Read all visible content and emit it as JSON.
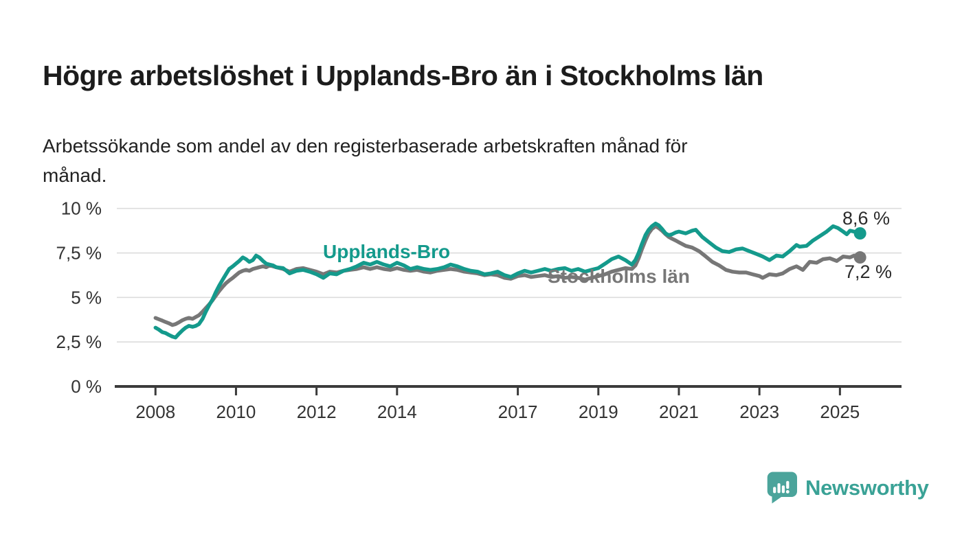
{
  "header": {
    "title": "Högre arbetslöshet i Upplands-Bro än i Stockholms län",
    "subtitle": "Arbetssökande som andel av den registerbaserade arbetskraften månad för\nmånad."
  },
  "chart_data": {
    "type": "line",
    "title": "Högre arbetslöshet i Upplands-Bro än i Stockholms län",
    "subtitle": "Arbetssökande som andel av den registerbaserade arbetskraften månad för månad.",
    "xlabel": "",
    "ylabel": "",
    "xlim": [
      2007.04,
      2026.53
    ],
    "ylim": [
      0,
      10
    ],
    "grid": "horizontal",
    "legend_position": "inline-labels",
    "colors": {
      "accent_teal": "#149a8c",
      "gray": "#777777",
      "gridline": "#dcdcdc",
      "axis": "#3b3b3b",
      "text": "#333333",
      "brand_teal": "#3aa296"
    },
    "x_ticks": [
      {
        "value": 2008,
        "label": "2008"
      },
      {
        "value": 2010,
        "label": "2010"
      },
      {
        "value": 2012,
        "label": "2012"
      },
      {
        "value": 2014,
        "label": "2014"
      },
      {
        "value": 2017,
        "label": "2017"
      },
      {
        "value": 2019,
        "label": "2019"
      },
      {
        "value": 2021,
        "label": "2021"
      },
      {
        "value": 2023,
        "label": "2023"
      },
      {
        "value": 2025,
        "label": "2025"
      }
    ],
    "y_ticks": [
      {
        "value": 0,
        "label": "0 %"
      },
      {
        "value": 2.5,
        "label": "2,5 %"
      },
      {
        "value": 5,
        "label": "5 %"
      },
      {
        "value": 7.5,
        "label": "7,5 %"
      },
      {
        "value": 10,
        "label": "10 %"
      }
    ],
    "series": [
      {
        "name": "Stockholms län",
        "color": "#777777",
        "end_label": "7,2 %",
        "end_value": 7.2,
        "points": [
          [
            2008.0,
            3.85
          ],
          [
            2008.08,
            3.78
          ],
          [
            2008.17,
            3.7
          ],
          [
            2008.25,
            3.62
          ],
          [
            2008.33,
            3.55
          ],
          [
            2008.42,
            3.45
          ],
          [
            2008.5,
            3.5
          ],
          [
            2008.58,
            3.6
          ],
          [
            2008.67,
            3.72
          ],
          [
            2008.75,
            3.8
          ],
          [
            2008.83,
            3.85
          ],
          [
            2008.92,
            3.8
          ],
          [
            2009.0,
            3.9
          ],
          [
            2009.08,
            4.0
          ],
          [
            2009.17,
            4.2
          ],
          [
            2009.25,
            4.4
          ],
          [
            2009.33,
            4.6
          ],
          [
            2009.42,
            4.85
          ],
          [
            2009.5,
            5.1
          ],
          [
            2009.58,
            5.35
          ],
          [
            2009.67,
            5.6
          ],
          [
            2009.75,
            5.8
          ],
          [
            2009.83,
            5.95
          ],
          [
            2009.92,
            6.1
          ],
          [
            2010.0,
            6.25
          ],
          [
            2010.08,
            6.4
          ],
          [
            2010.17,
            6.5
          ],
          [
            2010.25,
            6.55
          ],
          [
            2010.33,
            6.5
          ],
          [
            2010.42,
            6.6
          ],
          [
            2010.5,
            6.65
          ],
          [
            2010.58,
            6.7
          ],
          [
            2010.67,
            6.75
          ],
          [
            2010.75,
            6.7
          ],
          [
            2010.83,
            6.8
          ],
          [
            2010.92,
            6.75
          ],
          [
            2011.0,
            6.7
          ],
          [
            2011.17,
            6.6
          ],
          [
            2011.33,
            6.45
          ],
          [
            2011.5,
            6.6
          ],
          [
            2011.67,
            6.65
          ],
          [
            2011.83,
            6.55
          ],
          [
            2012.0,
            6.45
          ],
          [
            2012.17,
            6.3
          ],
          [
            2012.33,
            6.45
          ],
          [
            2012.5,
            6.4
          ],
          [
            2012.67,
            6.5
          ],
          [
            2012.83,
            6.55
          ],
          [
            2013.0,
            6.6
          ],
          [
            2013.17,
            6.7
          ],
          [
            2013.33,
            6.6
          ],
          [
            2013.5,
            6.7
          ],
          [
            2013.67,
            6.6
          ],
          [
            2013.83,
            6.55
          ],
          [
            2014.0,
            6.65
          ],
          [
            2014.17,
            6.55
          ],
          [
            2014.33,
            6.5
          ],
          [
            2014.5,
            6.55
          ],
          [
            2014.67,
            6.45
          ],
          [
            2014.83,
            6.4
          ],
          [
            2015.0,
            6.5
          ],
          [
            2015.17,
            6.55
          ],
          [
            2015.33,
            6.6
          ],
          [
            2015.5,
            6.55
          ],
          [
            2015.67,
            6.45
          ],
          [
            2015.83,
            6.4
          ],
          [
            2016.0,
            6.35
          ],
          [
            2016.17,
            6.25
          ],
          [
            2016.33,
            6.3
          ],
          [
            2016.5,
            6.25
          ],
          [
            2016.67,
            6.1
          ],
          [
            2016.83,
            6.05
          ],
          [
            2017.0,
            6.2
          ],
          [
            2017.17,
            6.25
          ],
          [
            2017.33,
            6.15
          ],
          [
            2017.5,
            6.2
          ],
          [
            2017.67,
            6.25
          ],
          [
            2017.83,
            6.15
          ],
          [
            2018.0,
            6.2
          ],
          [
            2018.17,
            6.1
          ],
          [
            2018.33,
            6.15
          ],
          [
            2018.5,
            6.1
          ],
          [
            2018.67,
            6.0
          ],
          [
            2018.83,
            6.1
          ],
          [
            2019.0,
            6.2
          ],
          [
            2019.17,
            6.3
          ],
          [
            2019.33,
            6.45
          ],
          [
            2019.5,
            6.55
          ],
          [
            2019.67,
            6.65
          ],
          [
            2019.83,
            6.6
          ],
          [
            2019.92,
            6.8
          ],
          [
            2020.0,
            7.2
          ],
          [
            2020.08,
            7.7
          ],
          [
            2020.17,
            8.2
          ],
          [
            2020.25,
            8.6
          ],
          [
            2020.33,
            8.85
          ],
          [
            2020.42,
            9.0
          ],
          [
            2020.5,
            8.9
          ],
          [
            2020.58,
            8.75
          ],
          [
            2020.67,
            8.55
          ],
          [
            2020.75,
            8.4
          ],
          [
            2020.83,
            8.3
          ],
          [
            2020.92,
            8.2
          ],
          [
            2021.0,
            8.1
          ],
          [
            2021.17,
            7.9
          ],
          [
            2021.33,
            7.8
          ],
          [
            2021.5,
            7.6
          ],
          [
            2021.67,
            7.3
          ],
          [
            2021.83,
            7.0
          ],
          [
            2022.0,
            6.8
          ],
          [
            2022.17,
            6.55
          ],
          [
            2022.33,
            6.45
          ],
          [
            2022.5,
            6.4
          ],
          [
            2022.67,
            6.4
          ],
          [
            2022.83,
            6.3
          ],
          [
            2023.0,
            6.2
          ],
          [
            2023.08,
            6.1
          ],
          [
            2023.25,
            6.3
          ],
          [
            2023.42,
            6.25
          ],
          [
            2023.58,
            6.35
          ],
          [
            2023.75,
            6.6
          ],
          [
            2023.92,
            6.75
          ],
          [
            2024.08,
            6.55
          ],
          [
            2024.25,
            7.0
          ],
          [
            2024.42,
            6.95
          ],
          [
            2024.58,
            7.15
          ],
          [
            2024.75,
            7.2
          ],
          [
            2024.92,
            7.05
          ],
          [
            2025.08,
            7.3
          ],
          [
            2025.25,
            7.25
          ],
          [
            2025.35,
            7.35
          ],
          [
            2025.5,
            7.25
          ]
        ]
      },
      {
        "name": "Upplands-Bro",
        "color": "#149a8c",
        "end_label": "8,6 %",
        "end_value": 8.6,
        "points": [
          [
            2008.0,
            3.3
          ],
          [
            2008.08,
            3.2
          ],
          [
            2008.17,
            3.05
          ],
          [
            2008.25,
            3.0
          ],
          [
            2008.33,
            2.9
          ],
          [
            2008.42,
            2.8
          ],
          [
            2008.5,
            2.75
          ],
          [
            2008.58,
            2.95
          ],
          [
            2008.67,
            3.15
          ],
          [
            2008.75,
            3.3
          ],
          [
            2008.83,
            3.4
          ],
          [
            2008.92,
            3.35
          ],
          [
            2009.0,
            3.4
          ],
          [
            2009.08,
            3.5
          ],
          [
            2009.17,
            3.8
          ],
          [
            2009.25,
            4.2
          ],
          [
            2009.33,
            4.55
          ],
          [
            2009.42,
            4.9
          ],
          [
            2009.5,
            5.3
          ],
          [
            2009.58,
            5.65
          ],
          [
            2009.67,
            6.0
          ],
          [
            2009.75,
            6.3
          ],
          [
            2009.83,
            6.6
          ],
          [
            2009.92,
            6.75
          ],
          [
            2010.0,
            6.9
          ],
          [
            2010.08,
            7.05
          ],
          [
            2010.17,
            7.25
          ],
          [
            2010.25,
            7.15
          ],
          [
            2010.33,
            7.0
          ],
          [
            2010.42,
            7.1
          ],
          [
            2010.5,
            7.35
          ],
          [
            2010.58,
            7.25
          ],
          [
            2010.67,
            7.05
          ],
          [
            2010.75,
            6.9
          ],
          [
            2010.83,
            6.85
          ],
          [
            2010.92,
            6.8
          ],
          [
            2011.0,
            6.7
          ],
          [
            2011.17,
            6.65
          ],
          [
            2011.33,
            6.35
          ],
          [
            2011.5,
            6.5
          ],
          [
            2011.67,
            6.55
          ],
          [
            2011.83,
            6.45
          ],
          [
            2012.0,
            6.3
          ],
          [
            2012.17,
            6.1
          ],
          [
            2012.33,
            6.35
          ],
          [
            2012.5,
            6.3
          ],
          [
            2012.67,
            6.5
          ],
          [
            2012.83,
            6.6
          ],
          [
            2013.0,
            6.75
          ],
          [
            2013.17,
            6.95
          ],
          [
            2013.33,
            6.85
          ],
          [
            2013.5,
            7.0
          ],
          [
            2013.67,
            6.85
          ],
          [
            2013.83,
            6.75
          ],
          [
            2014.0,
            6.95
          ],
          [
            2014.17,
            6.8
          ],
          [
            2014.33,
            6.6
          ],
          [
            2014.5,
            6.7
          ],
          [
            2014.67,
            6.6
          ],
          [
            2014.83,
            6.55
          ],
          [
            2015.0,
            6.6
          ],
          [
            2015.17,
            6.7
          ],
          [
            2015.33,
            6.85
          ],
          [
            2015.5,
            6.75
          ],
          [
            2015.67,
            6.6
          ],
          [
            2015.83,
            6.5
          ],
          [
            2016.0,
            6.45
          ],
          [
            2016.17,
            6.3
          ],
          [
            2016.33,
            6.35
          ],
          [
            2016.5,
            6.45
          ],
          [
            2016.67,
            6.25
          ],
          [
            2016.83,
            6.15
          ],
          [
            2017.0,
            6.35
          ],
          [
            2017.17,
            6.5
          ],
          [
            2017.33,
            6.4
          ],
          [
            2017.5,
            6.5
          ],
          [
            2017.67,
            6.6
          ],
          [
            2017.83,
            6.5
          ],
          [
            2018.0,
            6.6
          ],
          [
            2018.17,
            6.65
          ],
          [
            2018.33,
            6.5
          ],
          [
            2018.5,
            6.6
          ],
          [
            2018.67,
            6.45
          ],
          [
            2018.83,
            6.55
          ],
          [
            2019.0,
            6.65
          ],
          [
            2019.17,
            6.9
          ],
          [
            2019.33,
            7.15
          ],
          [
            2019.5,
            7.3
          ],
          [
            2019.67,
            7.1
          ],
          [
            2019.83,
            6.85
          ],
          [
            2019.92,
            7.1
          ],
          [
            2020.0,
            7.5
          ],
          [
            2020.08,
            8.0
          ],
          [
            2020.17,
            8.5
          ],
          [
            2020.25,
            8.8
          ],
          [
            2020.33,
            9.0
          ],
          [
            2020.42,
            9.15
          ],
          [
            2020.5,
            9.05
          ],
          [
            2020.58,
            8.85
          ],
          [
            2020.67,
            8.6
          ],
          [
            2020.75,
            8.5
          ],
          [
            2020.83,
            8.55
          ],
          [
            2020.92,
            8.65
          ],
          [
            2021.0,
            8.7
          ],
          [
            2021.17,
            8.6
          ],
          [
            2021.33,
            8.75
          ],
          [
            2021.42,
            8.8
          ],
          [
            2021.58,
            8.4
          ],
          [
            2021.75,
            8.1
          ],
          [
            2021.92,
            7.8
          ],
          [
            2022.08,
            7.6
          ],
          [
            2022.25,
            7.55
          ],
          [
            2022.42,
            7.7
          ],
          [
            2022.58,
            7.75
          ],
          [
            2022.75,
            7.6
          ],
          [
            2022.92,
            7.45
          ],
          [
            2023.08,
            7.3
          ],
          [
            2023.25,
            7.1
          ],
          [
            2023.42,
            7.35
          ],
          [
            2023.58,
            7.3
          ],
          [
            2023.75,
            7.6
          ],
          [
            2023.92,
            7.95
          ],
          [
            2024.0,
            7.85
          ],
          [
            2024.17,
            7.9
          ],
          [
            2024.33,
            8.2
          ],
          [
            2024.5,
            8.45
          ],
          [
            2024.67,
            8.7
          ],
          [
            2024.83,
            9.0
          ],
          [
            2024.95,
            8.9
          ],
          [
            2025.08,
            8.7
          ],
          [
            2025.17,
            8.55
          ],
          [
            2025.25,
            8.75
          ],
          [
            2025.35,
            8.7
          ],
          [
            2025.5,
            8.6
          ]
        ]
      }
    ]
  },
  "footer": {
    "brand": "Newsworthy",
    "logo_icon": "bar-chart-speech-bubble"
  }
}
